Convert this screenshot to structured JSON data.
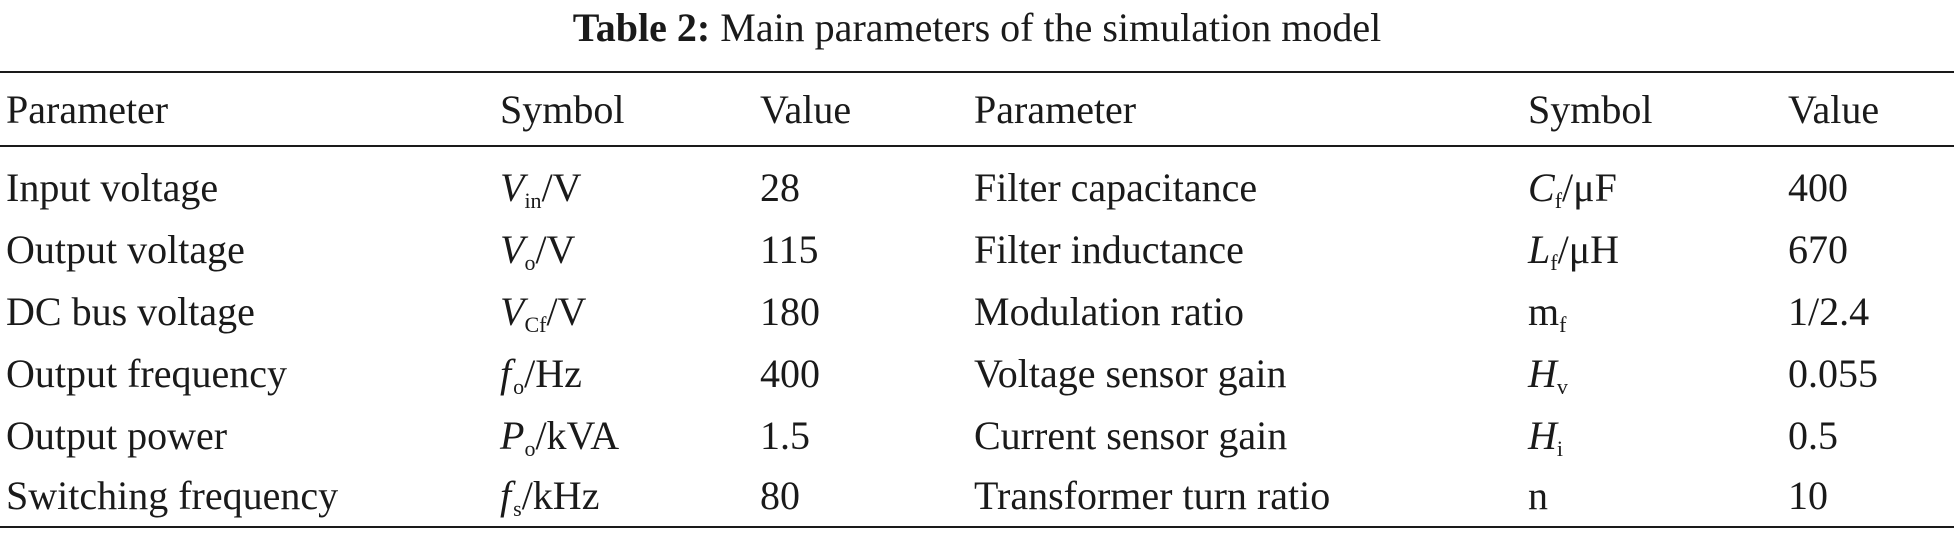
{
  "caption": {
    "label": "Table 2:",
    "text": "Main parameters of the simulation model"
  },
  "table": {
    "headers": [
      "Parameter",
      "Symbol",
      "Value",
      "Parameter",
      "Symbol",
      "Value"
    ],
    "rows": [
      {
        "left": {
          "parameter": "Input voltage",
          "symbol": {
            "var": "V",
            "sub": "in",
            "unit": "/V"
          },
          "value": "28"
        },
        "right": {
          "parameter": "Filter capacitance",
          "symbol": {
            "var": "C",
            "sub": "f",
            "unit": "/μF"
          },
          "value": "400"
        }
      },
      {
        "left": {
          "parameter": "Output voltage",
          "symbol": {
            "var": "V",
            "sub": "o",
            "unit": "/V"
          },
          "value": "115"
        },
        "right": {
          "parameter": "Filter inductance",
          "symbol": {
            "var": "L",
            "sub": "f",
            "unit": "/μH"
          },
          "value": "670"
        }
      },
      {
        "left": {
          "parameter": "DC bus voltage",
          "symbol": {
            "var": "V",
            "sub": "Cf",
            "unit": "/V"
          },
          "value": "180"
        },
        "right": {
          "parameter": "Modulation ratio",
          "symbol": {
            "var": "m",
            "sub": "f",
            "unit": ""
          },
          "value": "1/2.4"
        }
      },
      {
        "left": {
          "parameter": "Output frequency",
          "symbol": {
            "var": "f",
            "sub": "o",
            "unit": "/Hz"
          },
          "value": "400"
        },
        "right": {
          "parameter": "Voltage sensor gain",
          "symbol": {
            "var": "H",
            "sub": "v",
            "unit": ""
          },
          "value": "0.055"
        }
      },
      {
        "left": {
          "parameter": "Output power",
          "symbol": {
            "var": "P",
            "sub": "o",
            "unit": "/kVA"
          },
          "value": "1.5"
        },
        "right": {
          "parameter": "Current sensor gain",
          "symbol": {
            "var": "H",
            "sub": "i",
            "unit": ""
          },
          "value": "0.5"
        }
      },
      {
        "left": {
          "parameter": "Switching frequency",
          "symbol": {
            "var": "f",
            "sub": "s",
            "unit": "/kHz"
          },
          "value": "80"
        },
        "right": {
          "parameter": "Transformer turn ratio",
          "symbol": {
            "var": "n",
            "sub": "",
            "unit": ""
          },
          "value": "10"
        }
      }
    ]
  }
}
